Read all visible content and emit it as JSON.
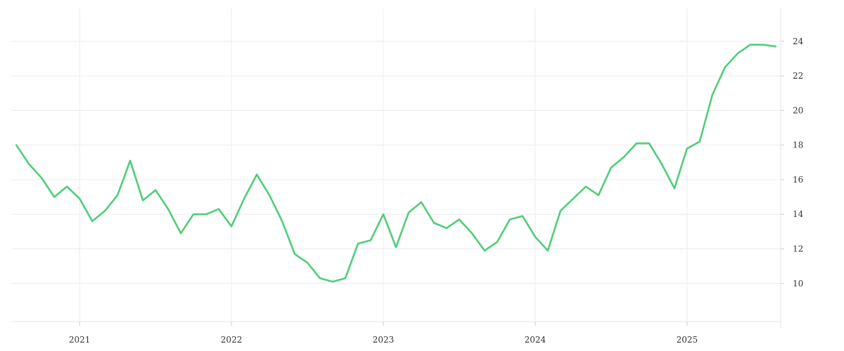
{
  "chart_data": {
    "type": "line",
    "title": "",
    "xlabel": "",
    "ylabel": "",
    "x_ticks": [
      "2021",
      "2022",
      "2023",
      "2024",
      "2025"
    ],
    "y_ticks": [
      10,
      12,
      14,
      16,
      18,
      20,
      22,
      24
    ],
    "ylim": [
      7.8,
      25.9
    ],
    "xlim": [
      "2020-08",
      "2025-08"
    ],
    "grid": true,
    "legend": "none",
    "y_axis_side": "right",
    "series": [
      {
        "color": "#4fce79",
        "x": [
          "2020-08",
          "2020-09",
          "2020-10",
          "2020-11",
          "2020-12",
          "2021-01",
          "2021-02",
          "2021-03",
          "2021-04",
          "2021-05",
          "2021-06",
          "2021-07",
          "2021-08",
          "2021-09",
          "2021-10",
          "2021-11",
          "2021-12",
          "2022-01",
          "2022-02",
          "2022-03",
          "2022-04",
          "2022-05",
          "2022-06",
          "2022-07",
          "2022-08",
          "2022-09",
          "2022-10",
          "2022-11",
          "2022-12",
          "2023-01",
          "2023-02",
          "2023-03",
          "2023-04",
          "2023-05",
          "2023-06",
          "2023-07",
          "2023-08",
          "2023-09",
          "2023-10",
          "2023-11",
          "2023-12",
          "2024-01",
          "2024-02",
          "2024-03",
          "2024-04",
          "2024-05",
          "2024-06",
          "2024-07",
          "2024-08",
          "2024-09",
          "2024-10",
          "2024-11",
          "2024-12",
          "2025-01",
          "2025-02",
          "2025-03",
          "2025-04",
          "2025-05",
          "2025-06",
          "2025-07",
          "2025-08"
        ],
        "values": [
          18.0,
          16.9,
          16.1,
          15.0,
          15.6,
          14.9,
          13.6,
          14.2,
          15.1,
          17.1,
          14.8,
          15.4,
          14.3,
          12.9,
          14.0,
          14.0,
          14.3,
          13.3,
          14.9,
          16.3,
          15.1,
          13.6,
          11.7,
          11.2,
          10.3,
          10.1,
          10.3,
          12.3,
          12.5,
          14.0,
          12.1,
          14.1,
          14.7,
          13.5,
          13.2,
          13.7,
          12.9,
          11.9,
          12.4,
          13.7,
          13.9,
          12.7,
          11.9,
          14.2,
          14.9,
          15.6,
          15.1,
          16.7,
          17.3,
          18.1,
          18.1,
          16.9,
          15.5,
          17.8,
          18.2,
          20.9,
          22.5,
          23.3,
          23.8,
          23.8,
          23.7
        ]
      }
    ]
  }
}
